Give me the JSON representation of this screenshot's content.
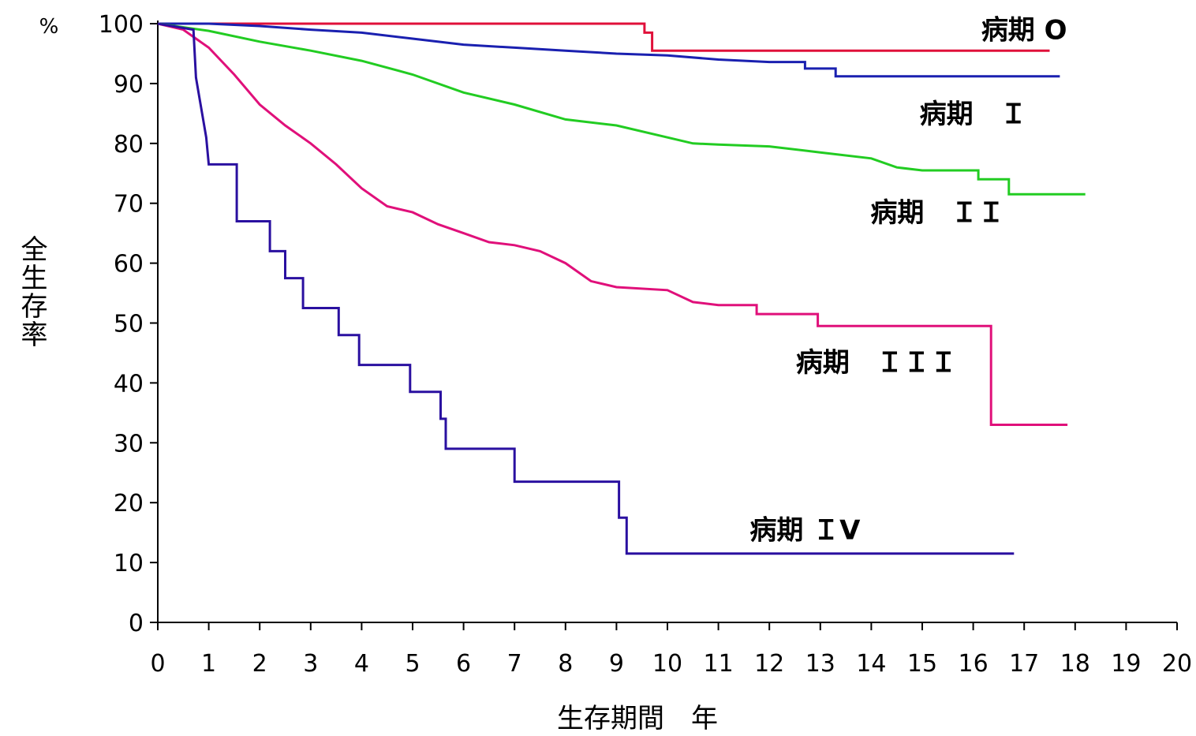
{
  "chart_data": {
    "type": "line",
    "title": "",
    "xlabel": "生存期間　年",
    "ylabel": "全生存率",
    "y_unit": "%",
    "xlim": [
      0,
      20
    ],
    "ylim": [
      0,
      100
    ],
    "x_ticks": [
      "0",
      "1",
      "2",
      "3",
      "4",
      "5",
      "6",
      "7",
      "8",
      "9",
      "10",
      "11",
      "12",
      "13",
      "14",
      "15",
      "16",
      "17",
      "18",
      "19",
      "20"
    ],
    "y_ticks": [
      "0",
      "10",
      "20",
      "30",
      "40",
      "50",
      "60",
      "70",
      "80",
      "90",
      "100"
    ],
    "grid": false,
    "legend": "inline labels",
    "series": [
      {
        "name": "病期 0",
        "color": "#e0103a",
        "points": [
          [
            0,
            100
          ],
          [
            9.55,
            100
          ],
          [
            9.55,
            98.5
          ],
          [
            9.7,
            98.5
          ],
          [
            9.7,
            95.5
          ],
          [
            17.5,
            95.5
          ]
        ]
      },
      {
        "name": "病期 Ⅰ",
        "color": "#1a20b0",
        "points": [
          [
            0,
            100
          ],
          [
            1,
            100
          ],
          [
            2,
            99.6
          ],
          [
            3,
            99
          ],
          [
            4,
            98.5
          ],
          [
            5,
            97.5
          ],
          [
            6,
            96.5
          ],
          [
            7,
            96
          ],
          [
            8,
            95.5
          ],
          [
            9,
            95
          ],
          [
            10,
            94.7
          ],
          [
            11,
            94
          ],
          [
            12,
            93.6
          ],
          [
            12.7,
            93.6
          ],
          [
            12.7,
            92.5
          ],
          [
            13.3,
            92.5
          ],
          [
            13.3,
            91.2
          ],
          [
            17.7,
            91.2
          ]
        ]
      },
      {
        "name": "病期 Ⅱ",
        "color": "#22cc22",
        "points": [
          [
            0,
            100
          ],
          [
            1,
            98.8
          ],
          [
            2,
            97
          ],
          [
            3,
            95.5
          ],
          [
            4,
            93.8
          ],
          [
            5,
            91.5
          ],
          [
            6,
            88.5
          ],
          [
            7,
            86.5
          ],
          [
            8,
            84
          ],
          [
            9,
            83
          ],
          [
            10,
            81
          ],
          [
            10.5,
            80
          ],
          [
            11,
            79.8
          ],
          [
            12,
            79.5
          ],
          [
            13,
            78.5
          ],
          [
            14,
            77.5
          ],
          [
            14.5,
            76
          ],
          [
            15,
            75.5
          ],
          [
            16.1,
            75.5
          ],
          [
            16.1,
            74
          ],
          [
            16.7,
            74
          ],
          [
            16.7,
            71.5
          ],
          [
            18.2,
            71.5
          ]
        ]
      },
      {
        "name": "病期 Ⅲ",
        "color": "#e0107a",
        "points": [
          [
            0,
            100
          ],
          [
            0.5,
            99
          ],
          [
            1,
            96
          ],
          [
            1.5,
            91.5
          ],
          [
            2,
            86.5
          ],
          [
            2.5,
            83
          ],
          [
            3,
            80
          ],
          [
            3.5,
            76.5
          ],
          [
            4,
            72.5
          ],
          [
            4.5,
            69.5
          ],
          [
            5,
            68.5
          ],
          [
            5.5,
            66.5
          ],
          [
            6,
            65
          ],
          [
            6.5,
            63.5
          ],
          [
            7,
            63
          ],
          [
            7.5,
            62
          ],
          [
            8,
            60
          ],
          [
            8.5,
            57
          ],
          [
            9,
            56
          ],
          [
            10,
            55.5
          ],
          [
            10.5,
            53.5
          ],
          [
            11,
            53
          ],
          [
            11.75,
            53
          ],
          [
            11.75,
            51.5
          ],
          [
            12.95,
            51.5
          ],
          [
            12.95,
            49.5
          ],
          [
            16.35,
            49.5
          ],
          [
            16.35,
            33
          ],
          [
            17.85,
            33
          ]
        ]
      },
      {
        "name": "病期 Ⅳ",
        "color": "#2a10a0",
        "points": [
          [
            0,
            100
          ],
          [
            0.7,
            99
          ],
          [
            0.75,
            91
          ],
          [
            0.85,
            86
          ],
          [
            0.95,
            81
          ],
          [
            1,
            76.5
          ],
          [
            1.55,
            76.5
          ],
          [
            1.55,
            67
          ],
          [
            2.2,
            67
          ],
          [
            2.2,
            62
          ],
          [
            2.5,
            62
          ],
          [
            2.5,
            57.5
          ],
          [
            2.85,
            57.5
          ],
          [
            2.85,
            52.5
          ],
          [
            3.55,
            52.5
          ],
          [
            3.55,
            48
          ],
          [
            3.95,
            48
          ],
          [
            3.95,
            43
          ],
          [
            4.95,
            43
          ],
          [
            4.95,
            38.5
          ],
          [
            5.55,
            38.5
          ],
          [
            5.55,
            34
          ],
          [
            5.65,
            34
          ],
          [
            5.65,
            29
          ],
          [
            7,
            29
          ],
          [
            7,
            23.5
          ],
          [
            9.05,
            23.5
          ],
          [
            9.05,
            17.5
          ],
          [
            9.2,
            17.5
          ],
          [
            9.2,
            11.5
          ],
          [
            16.8,
            11.5
          ]
        ]
      }
    ],
    "labels": [
      {
        "text": "病期 O",
        "x": 17.0,
        "y": 99
      },
      {
        "text": "病期　Ｉ",
        "x": 16.0,
        "y": 85
      },
      {
        "text": "病期　ＩＩ",
        "x": 15.3,
        "y": 68.5
      },
      {
        "text": "病期　ＩＩＩ",
        "x": 14.1,
        "y": 43.5
      },
      {
        "text": "病期 ＩV",
        "x": 12.7,
        "y": 15.5
      }
    ]
  }
}
